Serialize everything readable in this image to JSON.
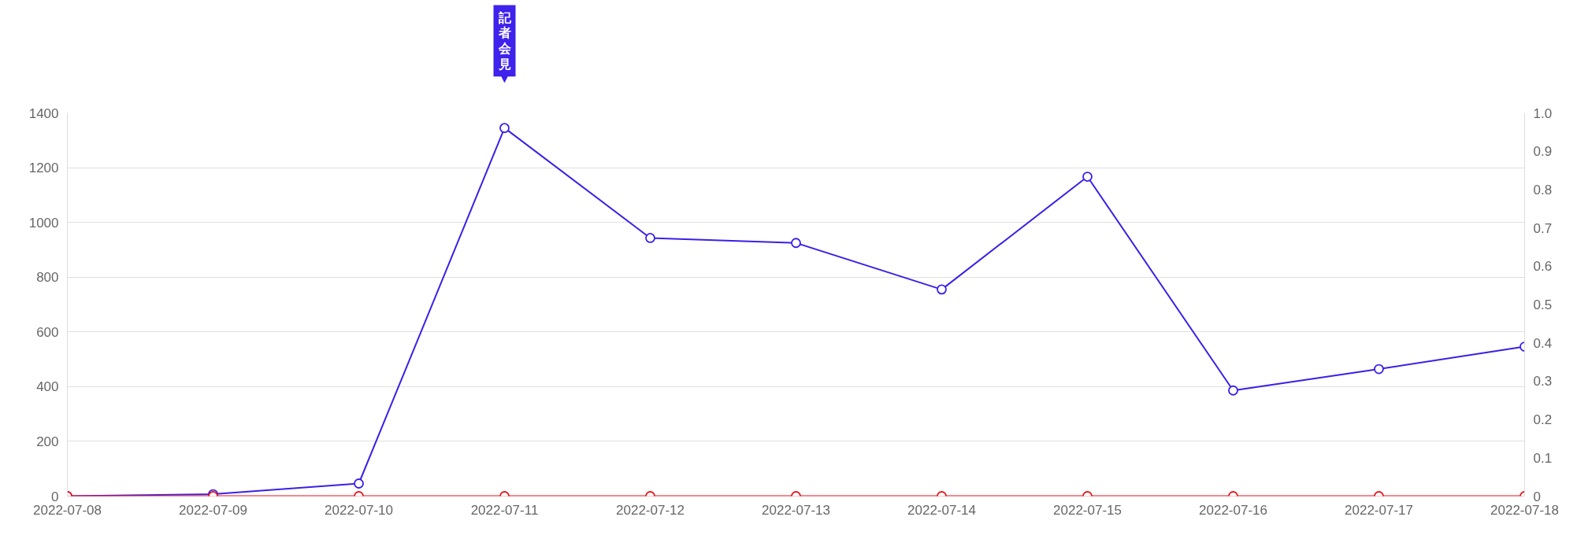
{
  "chart_data": {
    "type": "line",
    "categories": [
      "2022-07-08",
      "2022-07-09",
      "2022-07-10",
      "2022-07-11",
      "2022-07-12",
      "2022-07-13",
      "2022-07-14",
      "2022-07-15",
      "2022-07-16",
      "2022-07-17",
      "2022-07-18"
    ],
    "series": [
      {
        "color": "#3a20e8",
        "values": [
          0,
          7,
          46,
          1345,
          943,
          925,
          755,
          1167,
          386,
          464,
          546
        ]
      },
      {
        "color": "#e8161b",
        "values": [
          0,
          0,
          0,
          0,
          0,
          0,
          0,
          0,
          0,
          0,
          0
        ]
      }
    ],
    "ylim": [
      0,
      1400
    ],
    "yticks": [
      0,
      200,
      400,
      600,
      800,
      1000,
      1200,
      1400
    ],
    "y2lim": [
      0,
      1
    ],
    "y2ticks": [
      0,
      0.1,
      0.2,
      0.3,
      0.4,
      0.5,
      0.6,
      0.7,
      0.8,
      0.9,
      {
        "value": 1,
        "label": "1.0"
      }
    ],
    "annotations": [
      "記者会見"
    ],
    "grid": "y",
    "marker": "circle",
    "line_style": "solid"
  }
}
